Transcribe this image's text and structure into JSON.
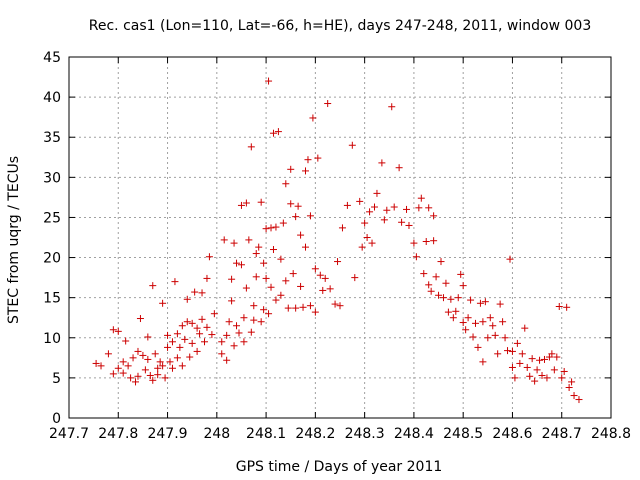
{
  "chart_data": {
    "type": "scatter",
    "title": "Rec. cas1 (Lon=110, Lat=-66, h=HE), days 247-248, 2011, window 003",
    "xlabel": "GPS time / Days of year 2011",
    "ylabel": "STEC from uqrg / TECUs",
    "xlim": [
      247.7,
      248.8
    ],
    "ylim": [
      0,
      45
    ],
    "xticks": [
      247.7,
      247.8,
      247.9,
      248,
      248.1,
      248.2,
      248.3,
      248.4,
      248.5,
      248.6,
      248.7,
      248.8
    ],
    "xtick_labels": [
      "247.7",
      "247.8",
      "247.9",
      "248",
      "248.1",
      "248.2",
      "248.3",
      "248.4",
      "248.5",
      "248.6",
      "248.7",
      "248.8"
    ],
    "yticks": [
      0,
      5,
      10,
      15,
      20,
      25,
      30,
      35,
      40,
      45
    ],
    "ytick_labels": [
      "0",
      "5",
      "10",
      "15",
      "20",
      "25",
      "30",
      "35",
      "40",
      "45"
    ],
    "grid": true,
    "marker": "+",
    "color": "#cc0000",
    "points": [
      [
        247.755,
        6.8
      ],
      [
        247.765,
        6.5
      ],
      [
        247.78,
        8.0
      ],
      [
        247.79,
        11.0
      ],
      [
        247.79,
        5.5
      ],
      [
        247.8,
        10.8
      ],
      [
        247.8,
        6.2
      ],
      [
        247.81,
        7.0
      ],
      [
        247.81,
        5.6
      ],
      [
        247.815,
        9.6
      ],
      [
        247.82,
        6.5
      ],
      [
        247.825,
        5.0
      ],
      [
        247.83,
        7.5
      ],
      [
        247.835,
        4.5
      ],
      [
        247.84,
        5.2
      ],
      [
        247.84,
        8.3
      ],
      [
        247.845,
        12.4
      ],
      [
        247.85,
        7.8
      ],
      [
        247.855,
        6.0
      ],
      [
        247.86,
        10.1
      ],
      [
        247.86,
        7.3
      ],
      [
        247.865,
        5.3
      ],
      [
        247.87,
        16.5
      ],
      [
        247.87,
        4.7
      ],
      [
        247.875,
        8.0
      ],
      [
        247.88,
        6.2
      ],
      [
        247.88,
        5.4
      ],
      [
        247.885,
        7.0
      ],
      [
        247.89,
        6.5
      ],
      [
        247.89,
        14.3
      ],
      [
        247.895,
        5.0
      ],
      [
        247.9,
        10.3
      ],
      [
        247.9,
        8.8
      ],
      [
        247.905,
        7.0
      ],
      [
        247.91,
        9.5
      ],
      [
        247.91,
        6.2
      ],
      [
        247.915,
        17.0
      ],
      [
        247.92,
        10.5
      ],
      [
        247.92,
        7.5
      ],
      [
        247.925,
        8.8
      ],
      [
        247.93,
        11.5
      ],
      [
        247.93,
        6.5
      ],
      [
        247.935,
        9.8
      ],
      [
        247.94,
        12.0
      ],
      [
        247.94,
        14.8
      ],
      [
        247.945,
        7.6
      ],
      [
        247.95,
        11.8
      ],
      [
        247.95,
        9.3
      ],
      [
        247.955,
        15.7
      ],
      [
        247.96,
        11.2
      ],
      [
        247.96,
        8.3
      ],
      [
        247.965,
        10.5
      ],
      [
        247.97,
        12.3
      ],
      [
        247.97,
        15.6
      ],
      [
        247.975,
        9.5
      ],
      [
        247.98,
        11.3
      ],
      [
        247.98,
        17.4
      ],
      [
        247.985,
        20.1
      ],
      [
        247.99,
        10.4
      ],
      [
        247.995,
        13.0
      ],
      [
        248.01,
        9.5
      ],
      [
        248.01,
        8.0
      ],
      [
        248.015,
        22.2
      ],
      [
        248.02,
        7.2
      ],
      [
        248.02,
        10.3
      ],
      [
        248.025,
        12.0
      ],
      [
        248.03,
        14.6
      ],
      [
        248.03,
        17.3
      ],
      [
        248.035,
        21.8
      ],
      [
        248.035,
        9.0
      ],
      [
        248.04,
        19.3
      ],
      [
        248.04,
        11.5
      ],
      [
        248.045,
        10.6
      ],
      [
        248.05,
        19.1
      ],
      [
        248.05,
        26.5
      ],
      [
        248.055,
        12.5
      ],
      [
        248.055,
        9.5
      ],
      [
        248.06,
        26.8
      ],
      [
        248.06,
        16.2
      ],
      [
        248.065,
        22.2
      ],
      [
        248.07,
        10.7
      ],
      [
        248.07,
        33.8
      ],
      [
        248.075,
        14.0
      ],
      [
        248.075,
        12.2
      ],
      [
        248.08,
        20.5
      ],
      [
        248.08,
        17.6
      ],
      [
        248.085,
        21.3
      ],
      [
        248.09,
        12.0
      ],
      [
        248.09,
        26.9
      ],
      [
        248.095,
        13.5
      ],
      [
        248.095,
        19.3
      ],
      [
        248.1,
        23.6
      ],
      [
        248.1,
        17.4
      ],
      [
        248.105,
        13.0
      ],
      [
        248.105,
        42.0
      ],
      [
        248.11,
        16.3
      ],
      [
        248.11,
        23.7
      ],
      [
        248.115,
        35.5
      ],
      [
        248.115,
        21.0
      ],
      [
        248.12,
        14.7
      ],
      [
        248.12,
        23.8
      ],
      [
        248.125,
        35.7
      ],
      [
        248.13,
        15.3
      ],
      [
        248.13,
        19.8
      ],
      [
        248.135,
        24.3
      ],
      [
        248.14,
        29.2
      ],
      [
        248.14,
        17.1
      ],
      [
        248.145,
        13.7
      ],
      [
        248.15,
        26.7
      ],
      [
        248.15,
        31.0
      ],
      [
        248.155,
        18.0
      ],
      [
        248.16,
        13.7
      ],
      [
        248.16,
        25.1
      ],
      [
        248.165,
        26.4
      ],
      [
        248.17,
        22.8
      ],
      [
        248.17,
        16.4
      ],
      [
        248.175,
        13.8
      ],
      [
        248.18,
        21.3
      ],
      [
        248.18,
        30.8
      ],
      [
        248.185,
        32.2
      ],
      [
        248.19,
        25.2
      ],
      [
        248.19,
        14.0
      ],
      [
        248.195,
        37.4
      ],
      [
        248.2,
        18.6
      ],
      [
        248.2,
        13.2
      ],
      [
        248.205,
        32.4
      ],
      [
        248.21,
        17.8
      ],
      [
        248.215,
        15.9
      ],
      [
        248.22,
        17.4
      ],
      [
        248.225,
        39.2
      ],
      [
        248.23,
        16.1
      ],
      [
        248.24,
        14.2
      ],
      [
        248.245,
        19.5
      ],
      [
        248.25,
        14.0
      ],
      [
        248.255,
        23.7
      ],
      [
        248.265,
        26.5
      ],
      [
        248.275,
        34.0
      ],
      [
        248.28,
        17.5
      ],
      [
        248.29,
        27.0
      ],
      [
        248.295,
        21.3
      ],
      [
        248.3,
        24.3
      ],
      [
        248.305,
        22.5
      ],
      [
        248.31,
        25.7
      ],
      [
        248.315,
        21.8
      ],
      [
        248.32,
        26.3
      ],
      [
        248.325,
        28.0
      ],
      [
        248.335,
        31.8
      ],
      [
        248.34,
        24.7
      ],
      [
        248.345,
        25.9
      ],
      [
        248.355,
        38.8
      ],
      [
        248.36,
        26.3
      ],
      [
        248.37,
        31.2
      ],
      [
        248.375,
        24.4
      ],
      [
        248.385,
        26.0
      ],
      [
        248.39,
        24.0
      ],
      [
        248.4,
        21.8
      ],
      [
        248.405,
        20.1
      ],
      [
        248.41,
        26.2
      ],
      [
        248.415,
        27.4
      ],
      [
        248.42,
        18.0
      ],
      [
        248.425,
        22.0
      ],
      [
        248.43,
        16.6
      ],
      [
        248.43,
        26.2
      ],
      [
        248.435,
        15.8
      ],
      [
        248.44,
        22.1
      ],
      [
        248.44,
        25.2
      ],
      [
        248.445,
        17.6
      ],
      [
        248.45,
        15.3
      ],
      [
        248.455,
        19.5
      ],
      [
        248.46,
        15.0
      ],
      [
        248.465,
        16.8
      ],
      [
        248.47,
        13.2
      ],
      [
        248.475,
        14.8
      ],
      [
        248.48,
        12.5
      ],
      [
        248.485,
        13.3
      ],
      [
        248.49,
        15.0
      ],
      [
        248.495,
        17.9
      ],
      [
        248.5,
        11.9
      ],
      [
        248.5,
        16.5
      ],
      [
        248.505,
        11.0
      ],
      [
        248.51,
        12.5
      ],
      [
        248.515,
        14.7
      ],
      [
        248.52,
        10.1
      ],
      [
        248.525,
        11.8
      ],
      [
        248.53,
        8.8
      ],
      [
        248.535,
        14.3
      ],
      [
        248.54,
        12.0
      ],
      [
        248.54,
        7.0
      ],
      [
        248.545,
        14.5
      ],
      [
        248.55,
        10.0
      ],
      [
        248.555,
        12.5
      ],
      [
        248.56,
        11.5
      ],
      [
        248.565,
        10.3
      ],
      [
        248.57,
        8.0
      ],
      [
        248.575,
        14.2
      ],
      [
        248.58,
        12.0
      ],
      [
        248.585,
        10.0
      ],
      [
        248.59,
        8.4
      ],
      [
        248.595,
        19.8
      ],
      [
        248.6,
        6.3
      ],
      [
        248.6,
        8.3
      ],
      [
        248.605,
        5.0
      ],
      [
        248.61,
        9.3
      ],
      [
        248.615,
        6.8
      ],
      [
        248.62,
        8.0
      ],
      [
        248.625,
        11.2
      ],
      [
        248.63,
        6.3
      ],
      [
        248.635,
        5.2
      ],
      [
        248.64,
        7.4
      ],
      [
        248.645,
        4.6
      ],
      [
        248.65,
        6.0
      ],
      [
        248.655,
        7.2
      ],
      [
        248.66,
        5.3
      ],
      [
        248.665,
        7.3
      ],
      [
        248.67,
        5.0
      ],
      [
        248.675,
        7.6
      ],
      [
        248.68,
        8.0
      ],
      [
        248.685,
        6.0
      ],
      [
        248.69,
        7.6
      ],
      [
        248.695,
        13.9
      ],
      [
        248.7,
        5.0
      ],
      [
        248.705,
        5.8
      ],
      [
        248.71,
        13.8
      ],
      [
        248.715,
        3.8
      ],
      [
        248.72,
        4.5
      ],
      [
        248.725,
        2.8
      ],
      [
        248.735,
        2.3
      ]
    ]
  }
}
